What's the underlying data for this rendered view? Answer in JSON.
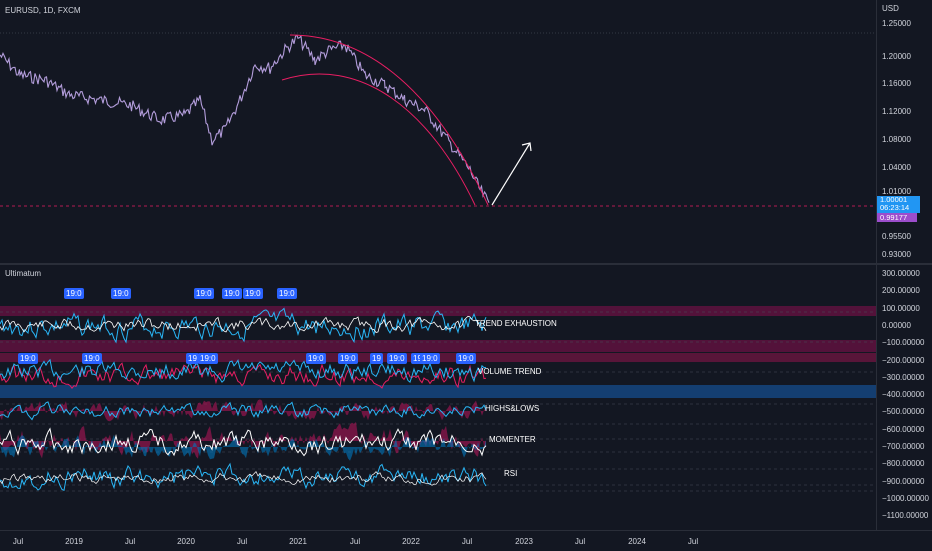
{
  "symbol": {
    "title": "EURUSD, 1D, FXCM"
  },
  "price_axis": {
    "currency": "USD",
    "ticks": [
      "1.25000",
      "1.20000",
      "1.16000",
      "1.12000",
      "1.08000",
      "1.04000",
      "1.01000",
      "0.95500",
      "0.93000"
    ],
    "current_price": "1.00001",
    "countdown": "06:23:14",
    "last_close": "0.99177"
  },
  "indicator": {
    "name": "Ultimatum",
    "axis_ticks": [
      "300.00000",
      "200.00000",
      "100.00000",
      "0.00000",
      "−100.00000",
      "−200.00000",
      "−300.00000",
      "−400.00000",
      "−500.00000",
      "−600.00000",
      "−700.00000",
      "−800.00000",
      "−900.00000",
      "−1000.00000",
      "−1100.00000"
    ],
    "top_markers": [
      "19:0",
      "19:0",
      "19:0",
      "19:0",
      "19:0",
      "19:0"
    ],
    "bottom_markers": [
      "19:0",
      "19:0",
      "19",
      "19:0",
      "19:0",
      "19:0",
      "19",
      "19:0",
      "19",
      "19:0",
      "19:0"
    ],
    "section_labels": [
      "TREND EXHAUSTION",
      "VOLUME TREND",
      "HIGHS&LOWS",
      "MOMENTER",
      "RSI"
    ]
  },
  "time_axis": {
    "labels": [
      "Jul",
      "2019",
      "Jul",
      "2020",
      "Jul",
      "2021",
      "Jul",
      "2022",
      "Jul",
      "2023",
      "Jul",
      "2024",
      "Jul"
    ]
  },
  "colors": {
    "background": "#131722",
    "candle": "#b39ddb",
    "arc": "#e91e63",
    "arrow": "#ffffff",
    "current_price_bg": "#2196f3",
    "last_close_bg": "#9c4dcc",
    "marker_bg": "#2962ff",
    "oscillator_cyan": "#29b6f6",
    "oscillator_pink": "#e91e63"
  }
}
